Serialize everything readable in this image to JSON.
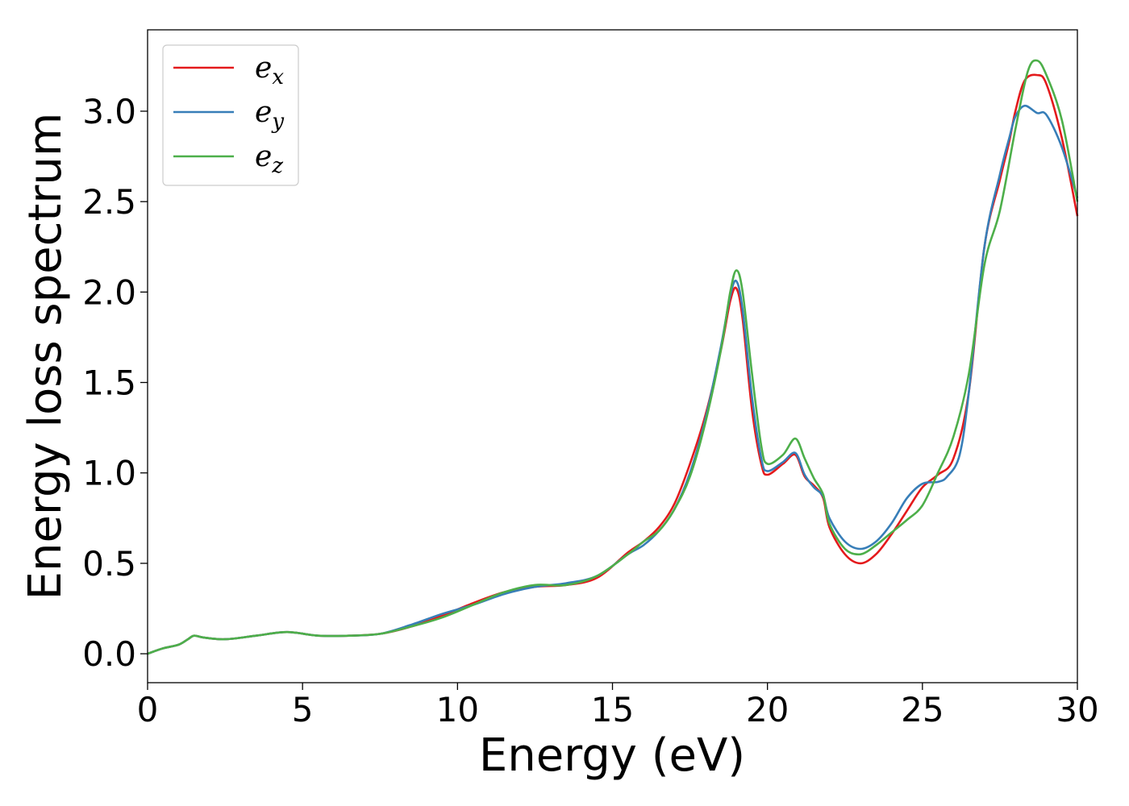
{
  "chart_data": {
    "type": "line",
    "title": "",
    "xlabel": "Energy (eV)",
    "ylabel": "Energy loss spectrum",
    "xlim": [
      0,
      30
    ],
    "ylim": [
      -0.16,
      3.45
    ],
    "xticks": [
      0,
      5,
      10,
      15,
      20,
      25,
      30
    ],
    "xtick_labels": [
      "0",
      "5",
      "10",
      "15",
      "20",
      "25",
      "30"
    ],
    "yticks": [
      0.0,
      0.5,
      1.0,
      1.5,
      2.0,
      2.5,
      3.0
    ],
    "ytick_labels": [
      "0.0",
      "0.5",
      "1.0",
      "1.5",
      "2.0",
      "2.5",
      "3.0"
    ],
    "grid": false,
    "legend_position": "top-left",
    "series": [
      {
        "name": "e_x",
        "label_base": "e",
        "label_sub": "x",
        "color": "#e41a1c",
        "x": [
          0,
          0.5,
          1.0,
          1.3,
          1.5,
          1.8,
          2.5,
          3.5,
          4.5,
          5.5,
          6.5,
          7.5,
          8.5,
          9.5,
          10.5,
          11.5,
          12.5,
          13.5,
          14.5,
          15.5,
          16.0,
          16.5,
          17.0,
          17.5,
          18.0,
          18.5,
          18.8,
          19.0,
          19.2,
          19.5,
          19.8,
          20.0,
          20.5,
          20.9,
          21.2,
          21.5,
          21.8,
          22.0,
          22.5,
          23.0,
          23.5,
          24.0,
          24.5,
          25.0,
          25.5,
          26.0,
          26.5,
          27.0,
          27.5,
          27.8,
          28.0,
          28.3,
          28.7,
          29.0,
          29.5,
          30.0
        ],
        "y": [
          0.0,
          0.03,
          0.05,
          0.08,
          0.1,
          0.09,
          0.08,
          0.1,
          0.12,
          0.1,
          0.1,
          0.11,
          0.15,
          0.21,
          0.28,
          0.34,
          0.37,
          0.38,
          0.42,
          0.56,
          0.62,
          0.7,
          0.83,
          1.05,
          1.32,
          1.68,
          1.95,
          2.02,
          1.85,
          1.35,
          1.05,
          0.99,
          1.05,
          1.1,
          0.98,
          0.93,
          0.86,
          0.7,
          0.55,
          0.5,
          0.55,
          0.66,
          0.79,
          0.92,
          0.99,
          1.08,
          1.45,
          2.25,
          2.62,
          2.83,
          3.0,
          3.17,
          3.2,
          3.15,
          2.85,
          2.42
        ]
      },
      {
        "name": "e_y",
        "label_base": "e",
        "label_sub": "y",
        "color": "#377eb8",
        "x": [
          0,
          0.5,
          1.0,
          1.3,
          1.5,
          1.8,
          2.5,
          3.5,
          4.5,
          5.5,
          6.5,
          7.5,
          8.5,
          9.5,
          10.5,
          11.5,
          12.5,
          13.5,
          14.5,
          15.5,
          16.0,
          16.5,
          17.0,
          17.5,
          18.0,
          18.5,
          18.8,
          19.0,
          19.2,
          19.5,
          19.8,
          20.0,
          20.5,
          20.9,
          21.2,
          21.5,
          21.8,
          22.0,
          22.5,
          23.0,
          23.5,
          24.0,
          24.5,
          25.0,
          25.5,
          25.8,
          26.2,
          26.5,
          27.0,
          27.5,
          27.8,
          28.0,
          28.3,
          28.7,
          29.0,
          29.5,
          30.0
        ],
        "y": [
          0.0,
          0.03,
          0.05,
          0.08,
          0.1,
          0.09,
          0.08,
          0.1,
          0.12,
          0.1,
          0.1,
          0.11,
          0.16,
          0.22,
          0.27,
          0.33,
          0.37,
          0.39,
          0.43,
          0.55,
          0.6,
          0.68,
          0.8,
          1.0,
          1.3,
          1.7,
          1.98,
          2.06,
          1.9,
          1.42,
          1.08,
          1.01,
          1.06,
          1.11,
          0.99,
          0.92,
          0.87,
          0.75,
          0.62,
          0.58,
          0.62,
          0.72,
          0.86,
          0.94,
          0.95,
          0.98,
          1.1,
          1.45,
          2.25,
          2.65,
          2.85,
          2.97,
          3.03,
          2.99,
          2.98,
          2.8,
          2.52
        ]
      },
      {
        "name": "e_z",
        "label_base": "e",
        "label_sub": "z",
        "color": "#4daf4a",
        "x": [
          0,
          0.5,
          1.0,
          1.3,
          1.5,
          1.8,
          2.5,
          3.5,
          4.5,
          5.5,
          6.5,
          7.5,
          8.5,
          9.5,
          10.5,
          11.5,
          12.5,
          13.5,
          14.5,
          15.5,
          16.0,
          16.5,
          17.0,
          17.5,
          18.0,
          18.5,
          18.8,
          19.0,
          19.2,
          19.5,
          19.8,
          20.0,
          20.5,
          20.9,
          21.2,
          21.5,
          21.8,
          22.0,
          22.5,
          23.0,
          23.5,
          24.0,
          24.5,
          25.0,
          25.5,
          26.0,
          26.5,
          27.0,
          27.5,
          28.0,
          28.4,
          28.7,
          29.0,
          29.5,
          30.0
        ],
        "y": [
          0.0,
          0.03,
          0.05,
          0.08,
          0.1,
          0.09,
          0.08,
          0.1,
          0.12,
          0.1,
          0.1,
          0.11,
          0.15,
          0.2,
          0.27,
          0.34,
          0.38,
          0.38,
          0.43,
          0.55,
          0.62,
          0.68,
          0.8,
          0.98,
          1.28,
          1.68,
          2.0,
          2.12,
          2.0,
          1.55,
          1.15,
          1.05,
          1.1,
          1.19,
          1.08,
          0.97,
          0.88,
          0.72,
          0.58,
          0.55,
          0.6,
          0.67,
          0.74,
          0.82,
          1.0,
          1.2,
          1.55,
          2.15,
          2.45,
          2.9,
          3.22,
          3.28,
          3.2,
          2.95,
          2.5
        ]
      }
    ]
  }
}
